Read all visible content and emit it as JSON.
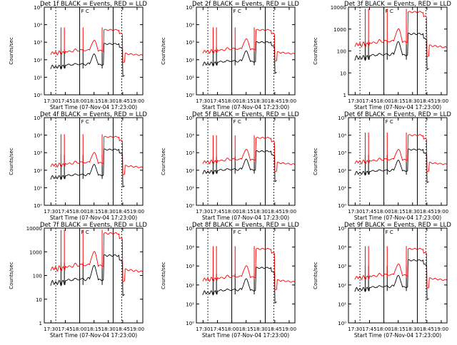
{
  "chart_data": [
    {
      "type": "line",
      "title": "Det 1f  BLACK = Events, RED = LLD",
      "xlabel": "Start Time (07-Nov-04 17:23:00)",
      "ylabel": "Counts/sec",
      "y_scale": "log",
      "ylim": [
        1,
        100000
      ],
      "yticks": [
        "10⁰",
        "10¹",
        "10²",
        "10³",
        "10⁴",
        "10⁵"
      ],
      "xticks": [
        "17:30",
        "17:45",
        "18:00",
        "18:15",
        "18:30",
        "18:45",
        "19:00"
      ],
      "grid": false,
      "annotation": "F    C",
      "series": [
        {
          "name": "Events",
          "color": "#000000",
          "base": 40,
          "step": 800
        },
        {
          "name": "LLD",
          "color": "#ff0000",
          "base": 250,
          "step": 5000
        }
      ]
    },
    {
      "type": "line",
      "title": "Det 2f  BLACK = Events, RED = LLD",
      "xlabel": "Start Time (07-Nov-04 17:23:00)",
      "ylabel": "Counts/sec",
      "y_scale": "log",
      "ylim": [
        1,
        100000
      ],
      "yticks": [
        "10⁰",
        "10¹",
        "10²",
        "10³",
        "10⁴",
        "10⁵"
      ],
      "xticks": [
        "17:30",
        "17:45",
        "18:00",
        "18:15",
        "18:30",
        "18:45",
        "19:00"
      ],
      "grid": false,
      "annotation": "F    C",
      "series": [
        {
          "name": "Events",
          "color": "#000000",
          "base": 60,
          "step": 1000
        },
        {
          "name": "LLD",
          "color": "#ff0000",
          "base": 300,
          "step": 5000
        }
      ]
    },
    {
      "type": "line",
      "title": "Det 3f  BLACK = Events, RED = LLD",
      "xlabel": "Start Time (07-Nov-04 17:23:00)",
      "ylabel": "Counts/sec",
      "y_scale": "log",
      "ylim": [
        1,
        10000
      ],
      "yticks": [
        "1",
        "10",
        "100",
        "1000",
        "10000"
      ],
      "xticks": [
        "17:30",
        "17:45",
        "18:00",
        "18:15",
        "18:30",
        "18:45",
        "19:00"
      ],
      "grid": false,
      "annotation": "F    C",
      "series": [
        {
          "name": "Events",
          "color": "#000000",
          "base": 50,
          "step": 600
        },
        {
          "name": "LLD",
          "color": "#ff0000",
          "base": 200,
          "step": 6000
        }
      ]
    },
    {
      "type": "line",
      "title": "Det 4f  BLACK = Events, RED = LLD",
      "xlabel": "Start Time (07-Nov-04 17:23:00)",
      "ylabel": "Counts/sec",
      "y_scale": "log",
      "ylim": [
        1,
        100000
      ],
      "yticks": [
        "10⁰",
        "10¹",
        "10²",
        "10³",
        "10⁴",
        "10⁵"
      ],
      "xticks": [
        "17:30",
        "17:45",
        "18:00",
        "18:15",
        "18:30",
        "18:45",
        "19:00"
      ],
      "grid": false,
      "annotation": "F    C",
      "series": [
        {
          "name": "Events",
          "color": "#000000",
          "base": 40,
          "step": 1500
        },
        {
          "name": "LLD",
          "color": "#ff0000",
          "base": 200,
          "step": 8000
        }
      ]
    },
    {
      "type": "line",
      "title": "Det 5f  BLACK = Events, RED = LLD",
      "xlabel": "Start Time (07-Nov-04 17:23:00)",
      "ylabel": "Counts/sec",
      "y_scale": "log",
      "ylim": [
        1,
        100000
      ],
      "yticks": [
        "10⁰",
        "10¹",
        "10²",
        "10³",
        "10⁴",
        "10⁵"
      ],
      "xticks": [
        "17:30",
        "17:45",
        "18:00",
        "18:15",
        "18:30",
        "18:45",
        "19:00"
      ],
      "grid": false,
      "annotation": "F    C",
      "series": [
        {
          "name": "Events",
          "color": "#000000",
          "base": 80,
          "step": 1200
        },
        {
          "name": "LLD",
          "color": "#ff0000",
          "base": 300,
          "step": 7000
        }
      ]
    },
    {
      "type": "line",
      "title": "Det 6f  BLACK = Events, RED = LLD",
      "xlabel": "Start Time (07-Nov-04 17:23:00)",
      "ylabel": "Counts/sec",
      "y_scale": "log",
      "ylim": [
        1,
        100000
      ],
      "yticks": [
        "10⁰",
        "10¹",
        "10²",
        "10³",
        "10⁴",
        "10⁵"
      ],
      "xticks": [
        "17:30",
        "17:45",
        "18:00",
        "18:15",
        "18:30",
        "18:45",
        "19:00"
      ],
      "grid": false,
      "annotation": "F    C",
      "series": [
        {
          "name": "Events",
          "color": "#000000",
          "base": 70,
          "step": 1500
        },
        {
          "name": "LLD",
          "color": "#ff0000",
          "base": 300,
          "step": 10000
        }
      ]
    },
    {
      "type": "line",
      "title": "Det 7f  BLACK = Events, RED = LLD",
      "xlabel": "Start Time (07-Nov-04 17:23:00)",
      "ylabel": "Counts/sec",
      "y_scale": "log",
      "ylim": [
        1,
        10000
      ],
      "yticks": [
        "1",
        "10",
        "100",
        "1000",
        "10000"
      ],
      "xticks": [
        "17:30",
        "17:45",
        "18:00",
        "18:15",
        "18:30",
        "18:45",
        "19:00"
      ],
      "grid": false,
      "annotation": "F    C",
      "series": [
        {
          "name": "Events",
          "color": "#000000",
          "base": 50,
          "step": 700
        },
        {
          "name": "LLD",
          "color": "#ff0000",
          "base": 200,
          "step": 6000
        }
      ]
    },
    {
      "type": "line",
      "title": "Det 8f  BLACK = Events, RED = LLD",
      "xlabel": "Start Time (07-Nov-04 17:23:00)",
      "ylabel": "Counts/sec",
      "y_scale": "log",
      "ylim": [
        1,
        100000
      ],
      "yticks": [
        "10⁰",
        "10¹",
        "10²",
        "10³",
        "10⁴",
        "10⁵"
      ],
      "xticks": [
        "17:30",
        "17:45",
        "18:00",
        "18:15",
        "18:30",
        "18:45",
        "19:00"
      ],
      "grid": false,
      "annotation": "F    C",
      "series": [
        {
          "name": "Events",
          "color": "#000000",
          "base": 40,
          "step": 800
        },
        {
          "name": "LLD",
          "color": "#ff0000",
          "base": 200,
          "step": 8000
        }
      ]
    },
    {
      "type": "line",
      "title": "Det 9f  BLACK = Events, RED = LLD",
      "xlabel": "Start Time (07-Nov-04 17:23:00)",
      "ylabel": "Counts/sec",
      "y_scale": "log",
      "ylim": [
        1,
        100000
      ],
      "yticks": [
        "10⁰",
        "10¹",
        "10²",
        "10³",
        "10⁴",
        "10⁵"
      ],
      "xticks": [
        "17:30",
        "17:45",
        "18:00",
        "18:15",
        "18:30",
        "18:45",
        "19:00"
      ],
      "grid": false,
      "annotation": "F    C",
      "series": [
        {
          "name": "Events",
          "color": "#000000",
          "base": 60,
          "step": 2000
        },
        {
          "name": "LLD",
          "color": "#ff0000",
          "base": 250,
          "step": 8000
        }
      ]
    }
  ]
}
